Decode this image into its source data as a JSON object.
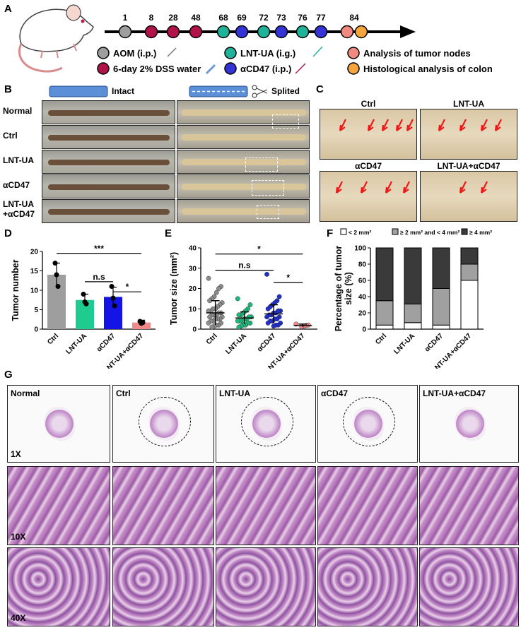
{
  "panels": {
    "A": "A",
    "B": "B",
    "C": "C",
    "D": "D",
    "E": "E",
    "F": "F",
    "G": "G"
  },
  "timeline": {
    "days": [
      "1",
      "8",
      "28",
      "48",
      "68",
      "69",
      "72",
      "73",
      "76",
      "77",
      "84"
    ],
    "dot_types": [
      "aom",
      "dss",
      "dss",
      "dss",
      "lnt",
      "acd",
      "lnt",
      "acd",
      "lnt",
      "acd",
      "tumor",
      "histo"
    ],
    "colors": {
      "aom": "#9e9e9e",
      "dss": "#b0124a",
      "lnt": "#1fb39a",
      "acd": "#3434d6",
      "tumor": "#f08a80",
      "histo": "#f4a53c"
    },
    "legend": {
      "aom": "AOM (i.p.)",
      "dss": "6-day 2% DSS water",
      "lnt": "LNT-UA (i.g.)",
      "acd": "αCD47 (i.p.)",
      "tumor": "Analysis of tumor nodes",
      "histo": "Histological analysis of colon"
    }
  },
  "panel_b": {
    "intact": "Intact",
    "splited": "Splited",
    "rows": [
      "Normal",
      "Ctrl",
      "LNT-UA",
      "αCD47",
      "LNT-UA\n+αCD47"
    ]
  },
  "panel_c": {
    "labels": [
      "Ctrl",
      "LNT-UA",
      "αCD47",
      "LNT-UA+αCD47"
    ]
  },
  "panel_g": {
    "columns": [
      "Normal",
      "Ctrl",
      "LNT-UA",
      "αCD47",
      "LNT-UA+αCD47"
    ],
    "mags": [
      "1X",
      "10X",
      "40X"
    ]
  },
  "chart_data": [
    {
      "panel": "D",
      "type": "bar",
      "categories": [
        "Ctrl",
        "LNT-UA",
        "αCD47",
        "LNT-UA+αCD47"
      ],
      "values": [
        14,
        7.5,
        8.3,
        1.7
      ],
      "errors": [
        3,
        1.5,
        2.5,
        0.6
      ],
      "points": [
        [
          17,
          14,
          11
        ],
        [
          9,
          7,
          6.5
        ],
        [
          11,
          8,
          6
        ],
        [
          2,
          1.5,
          1.7
        ]
      ],
      "colors": [
        "#9e9e9e",
        "#1fcc8f",
        "#1414e6",
        "#f08a8a"
      ],
      "ylabel": "Tumor number",
      "ylim": [
        0,
        20
      ],
      "yticks": [
        "0",
        "5",
        "10",
        "15",
        "20"
      ],
      "significance": [
        {
          "from": 0,
          "to": 3,
          "label": "***"
        },
        {
          "from": 1,
          "to": 2,
          "label": "n.s"
        },
        {
          "from": 2,
          "to": 3,
          "label": "*"
        }
      ]
    },
    {
      "panel": "E",
      "type": "scatter",
      "categories": [
        "Ctrl",
        "LNT-UA",
        "αCD47",
        "LNT-UA+αCD47"
      ],
      "means": [
        8,
        5.5,
        7.5,
        1.8
      ],
      "sds": [
        6,
        3,
        4.5,
        0.7
      ],
      "points": [
        [
          25,
          21,
          20,
          18,
          16,
          15,
          14,
          13,
          12,
          11,
          10,
          10,
          9,
          9,
          8,
          8,
          7,
          7,
          7,
          6,
          6,
          5,
          5,
          5,
          4,
          4,
          3,
          3,
          2,
          2,
          1.5,
          1
        ],
        [
          15,
          12,
          10,
          9,
          8,
          7,
          7,
          6,
          6,
          5,
          5,
          4,
          4,
          4,
          3,
          3,
          2,
          2,
          1.5,
          1
        ],
        [
          27,
          16,
          14,
          13,
          12,
          11,
          10,
          9,
          9,
          8,
          8,
          7,
          7,
          6,
          6,
          5,
          5,
          4,
          4,
          3,
          3,
          2,
          2,
          1.5
        ],
        [
          2.5,
          2,
          1.8,
          1.5,
          1.2
        ]
      ],
      "colors": [
        "#8c8c8c",
        "#1fb87c",
        "#1f2fc8",
        "#f08a8a"
      ],
      "ylabel": "Tumor size (mm²)",
      "ylim": [
        0,
        40
      ],
      "yticks": [
        "0",
        "10",
        "20",
        "30",
        "40"
      ],
      "significance": [
        {
          "from": 0,
          "to": 3,
          "label": "*"
        },
        {
          "from": 0,
          "to": 2,
          "label": "n.s"
        },
        {
          "from": 2,
          "to": 3,
          "label": "*"
        }
      ]
    },
    {
      "panel": "F",
      "type": "bar",
      "stacked": true,
      "categories": [
        "Ctrl",
        "LNT-UA",
        "αCD47",
        "LNT-UA+αCD47"
      ],
      "series": [
        {
          "name": "< 2 mm²",
          "values": [
            5,
            8,
            5,
            60
          ],
          "color": "#ffffff"
        },
        {
          "name": "≥ 2 mm² and < 4 mm²",
          "values": [
            30,
            23,
            45,
            20
          ],
          "color": "#a0a0a0"
        },
        {
          "name": "≥ 4 mm²",
          "values": [
            65,
            69,
            50,
            20
          ],
          "color": "#3a3a3a"
        }
      ],
      "ylabel": "Percentage of tumor\nsize (%)",
      "ylim": [
        0,
        100
      ],
      "yticks": [
        "0",
        "20",
        "40",
        "60",
        "80",
        "100"
      ]
    }
  ]
}
